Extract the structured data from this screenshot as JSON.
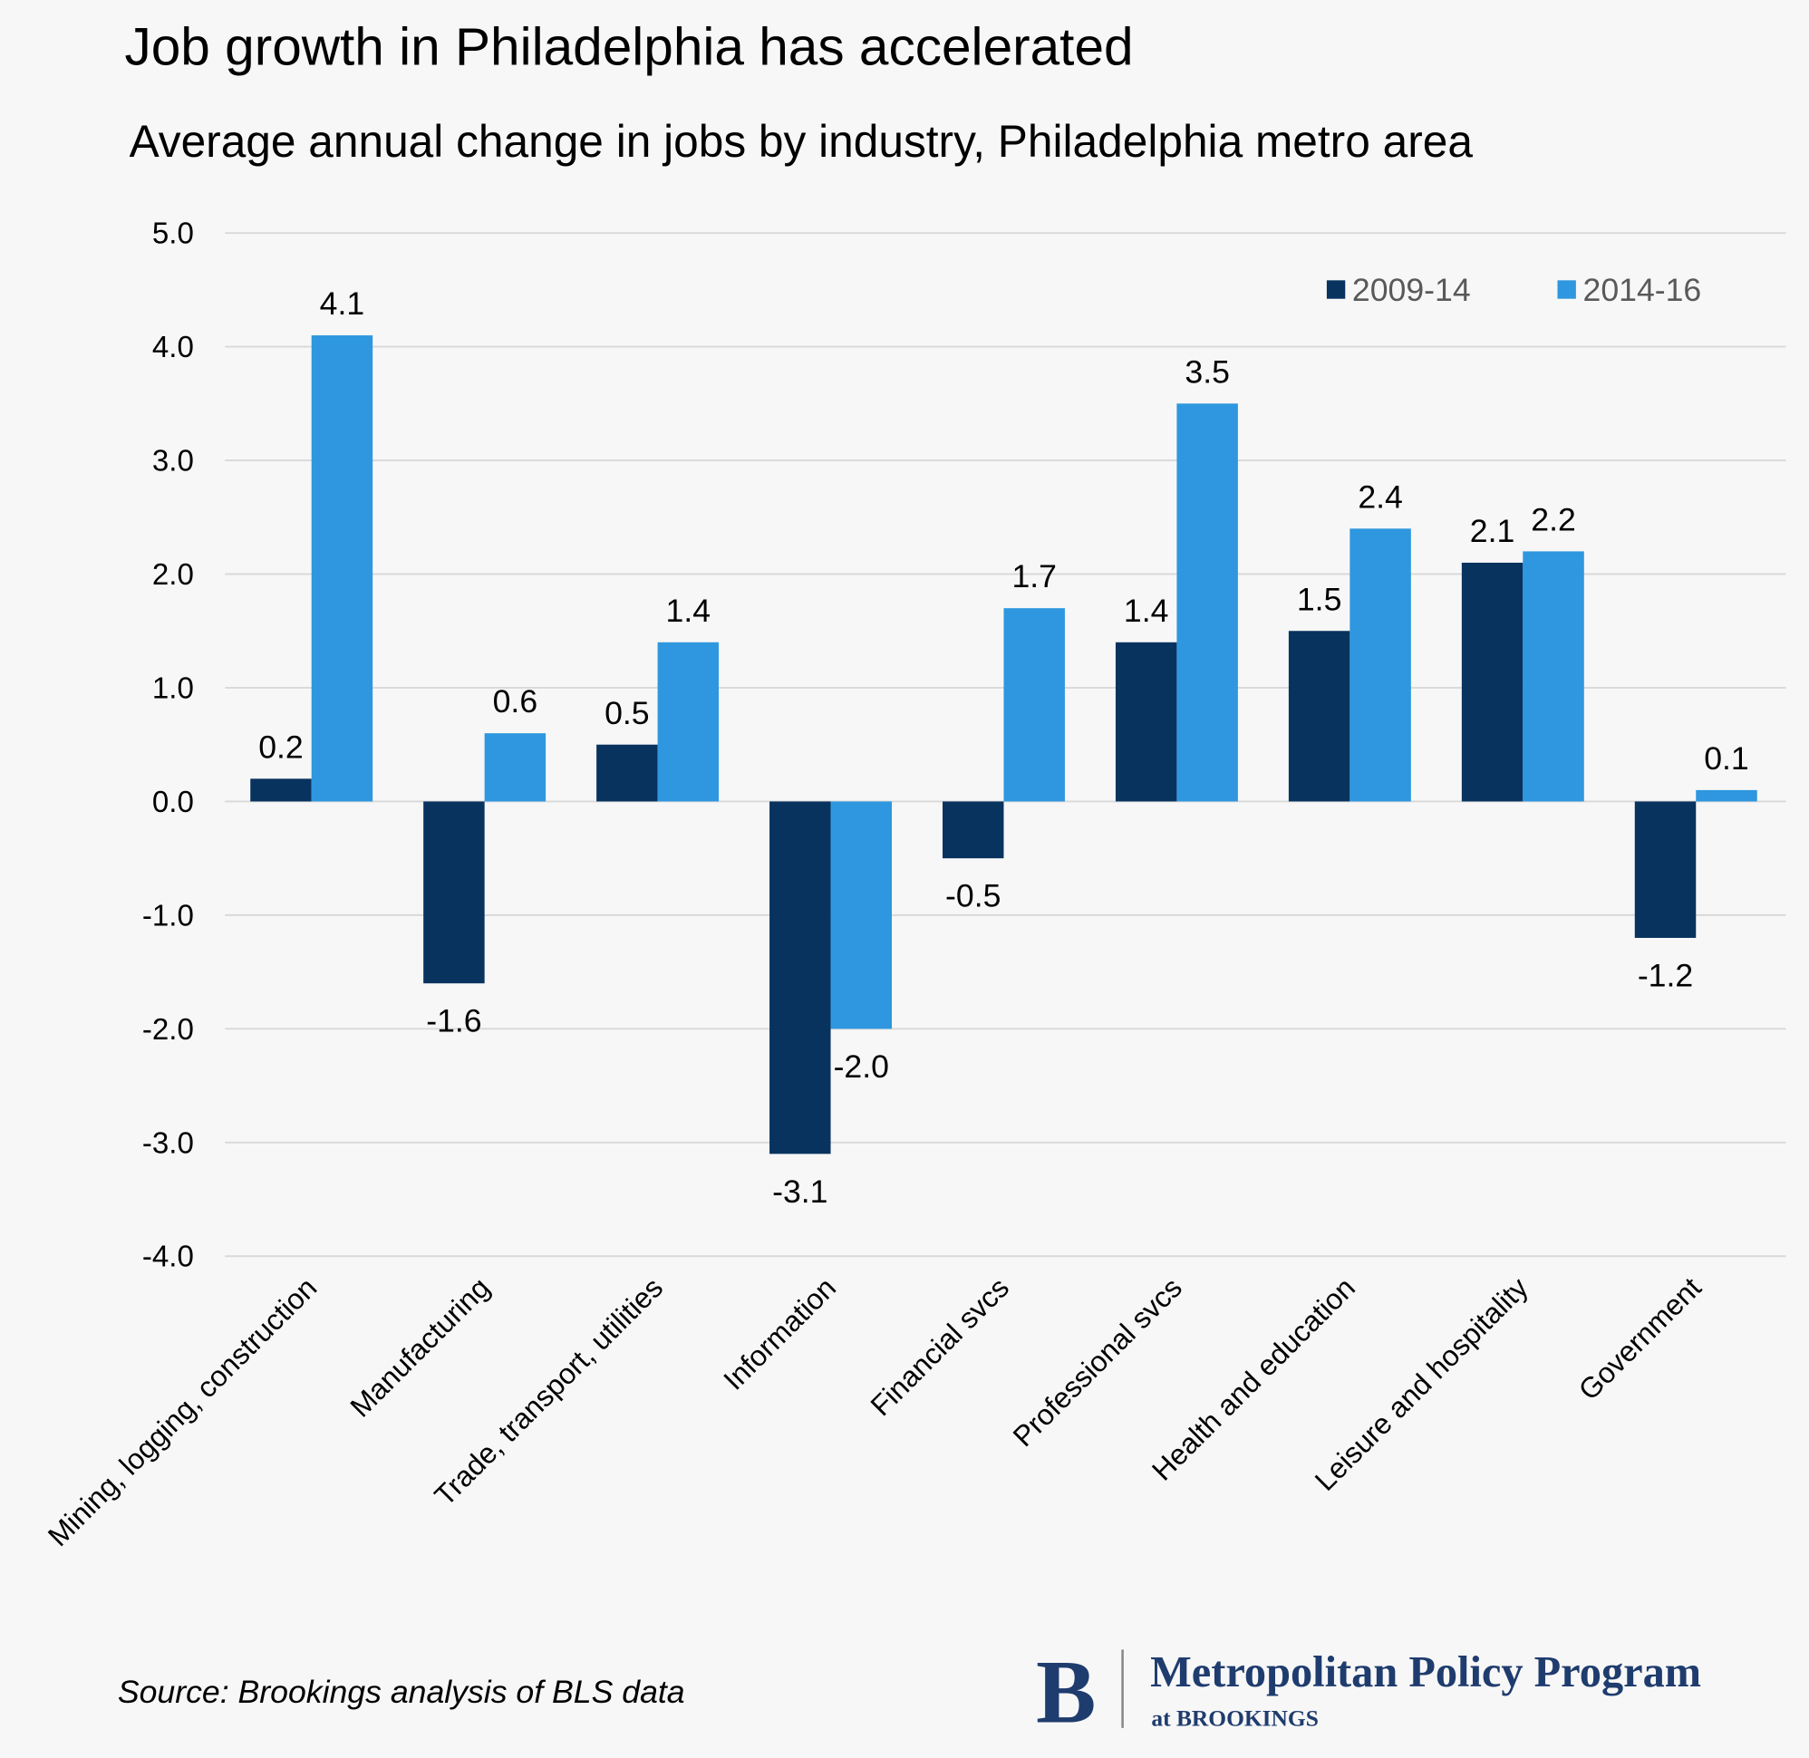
{
  "chart_data": {
    "type": "bar",
    "title": "Job growth in Philadelphia has accelerated",
    "subtitle": "Average annual change in jobs by industry, Philadelphia metro area",
    "categories": [
      "Mining, logging, construction",
      "Manufacturing",
      "Trade, transport, utilities",
      "Information",
      "Financial svcs",
      "Professional svcs",
      "Health and education",
      "Leisure and hospitality",
      "Government"
    ],
    "series": [
      {
        "name": "2009-14",
        "color": "#08335f",
        "values": [
          0.2,
          -1.6,
          0.5,
          -3.1,
          -0.5,
          1.4,
          1.5,
          2.1,
          -1.2
        ],
        "value_labels": [
          "0.2",
          "-1.6",
          "0.5",
          "-3.1",
          "-0.5",
          "1.4",
          "1.5",
          "2.1",
          "-1.2"
        ]
      },
      {
        "name": "2014-16",
        "color": "#2e97df",
        "values": [
          4.1,
          0.6,
          1.4,
          -2.0,
          1.7,
          3.5,
          2.4,
          2.2,
          0.1
        ],
        "value_labels": [
          "4.1",
          "0.6",
          "1.4",
          "-2.0",
          "1.7",
          "3.5",
          "2.4",
          "2.2",
          "0.1"
        ]
      }
    ],
    "ylim": [
      -4,
      5
    ],
    "yticks": [
      {
        "value": -4,
        "label": "-4.0"
      },
      {
        "value": -3,
        "label": "-3.0"
      },
      {
        "value": -2,
        "label": "-2.0"
      },
      {
        "value": -1,
        "label": "-1.0"
      },
      {
        "value": 0,
        "label": "0.0"
      },
      {
        "value": 1,
        "label": "1.0"
      },
      {
        "value": 2,
        "label": "2.0"
      },
      {
        "value": 3,
        "label": "3.0"
      },
      {
        "value": 4,
        "label": "4.0"
      },
      {
        "value": 5,
        "label": "5.0"
      }
    ],
    "grid": true,
    "legend": "top-right",
    "source": "Source: Brookings analysis of BLS data"
  },
  "logo": {
    "letter": "B",
    "name": "Metropolitan Policy Program",
    "sub": "at BROOKINGS"
  }
}
